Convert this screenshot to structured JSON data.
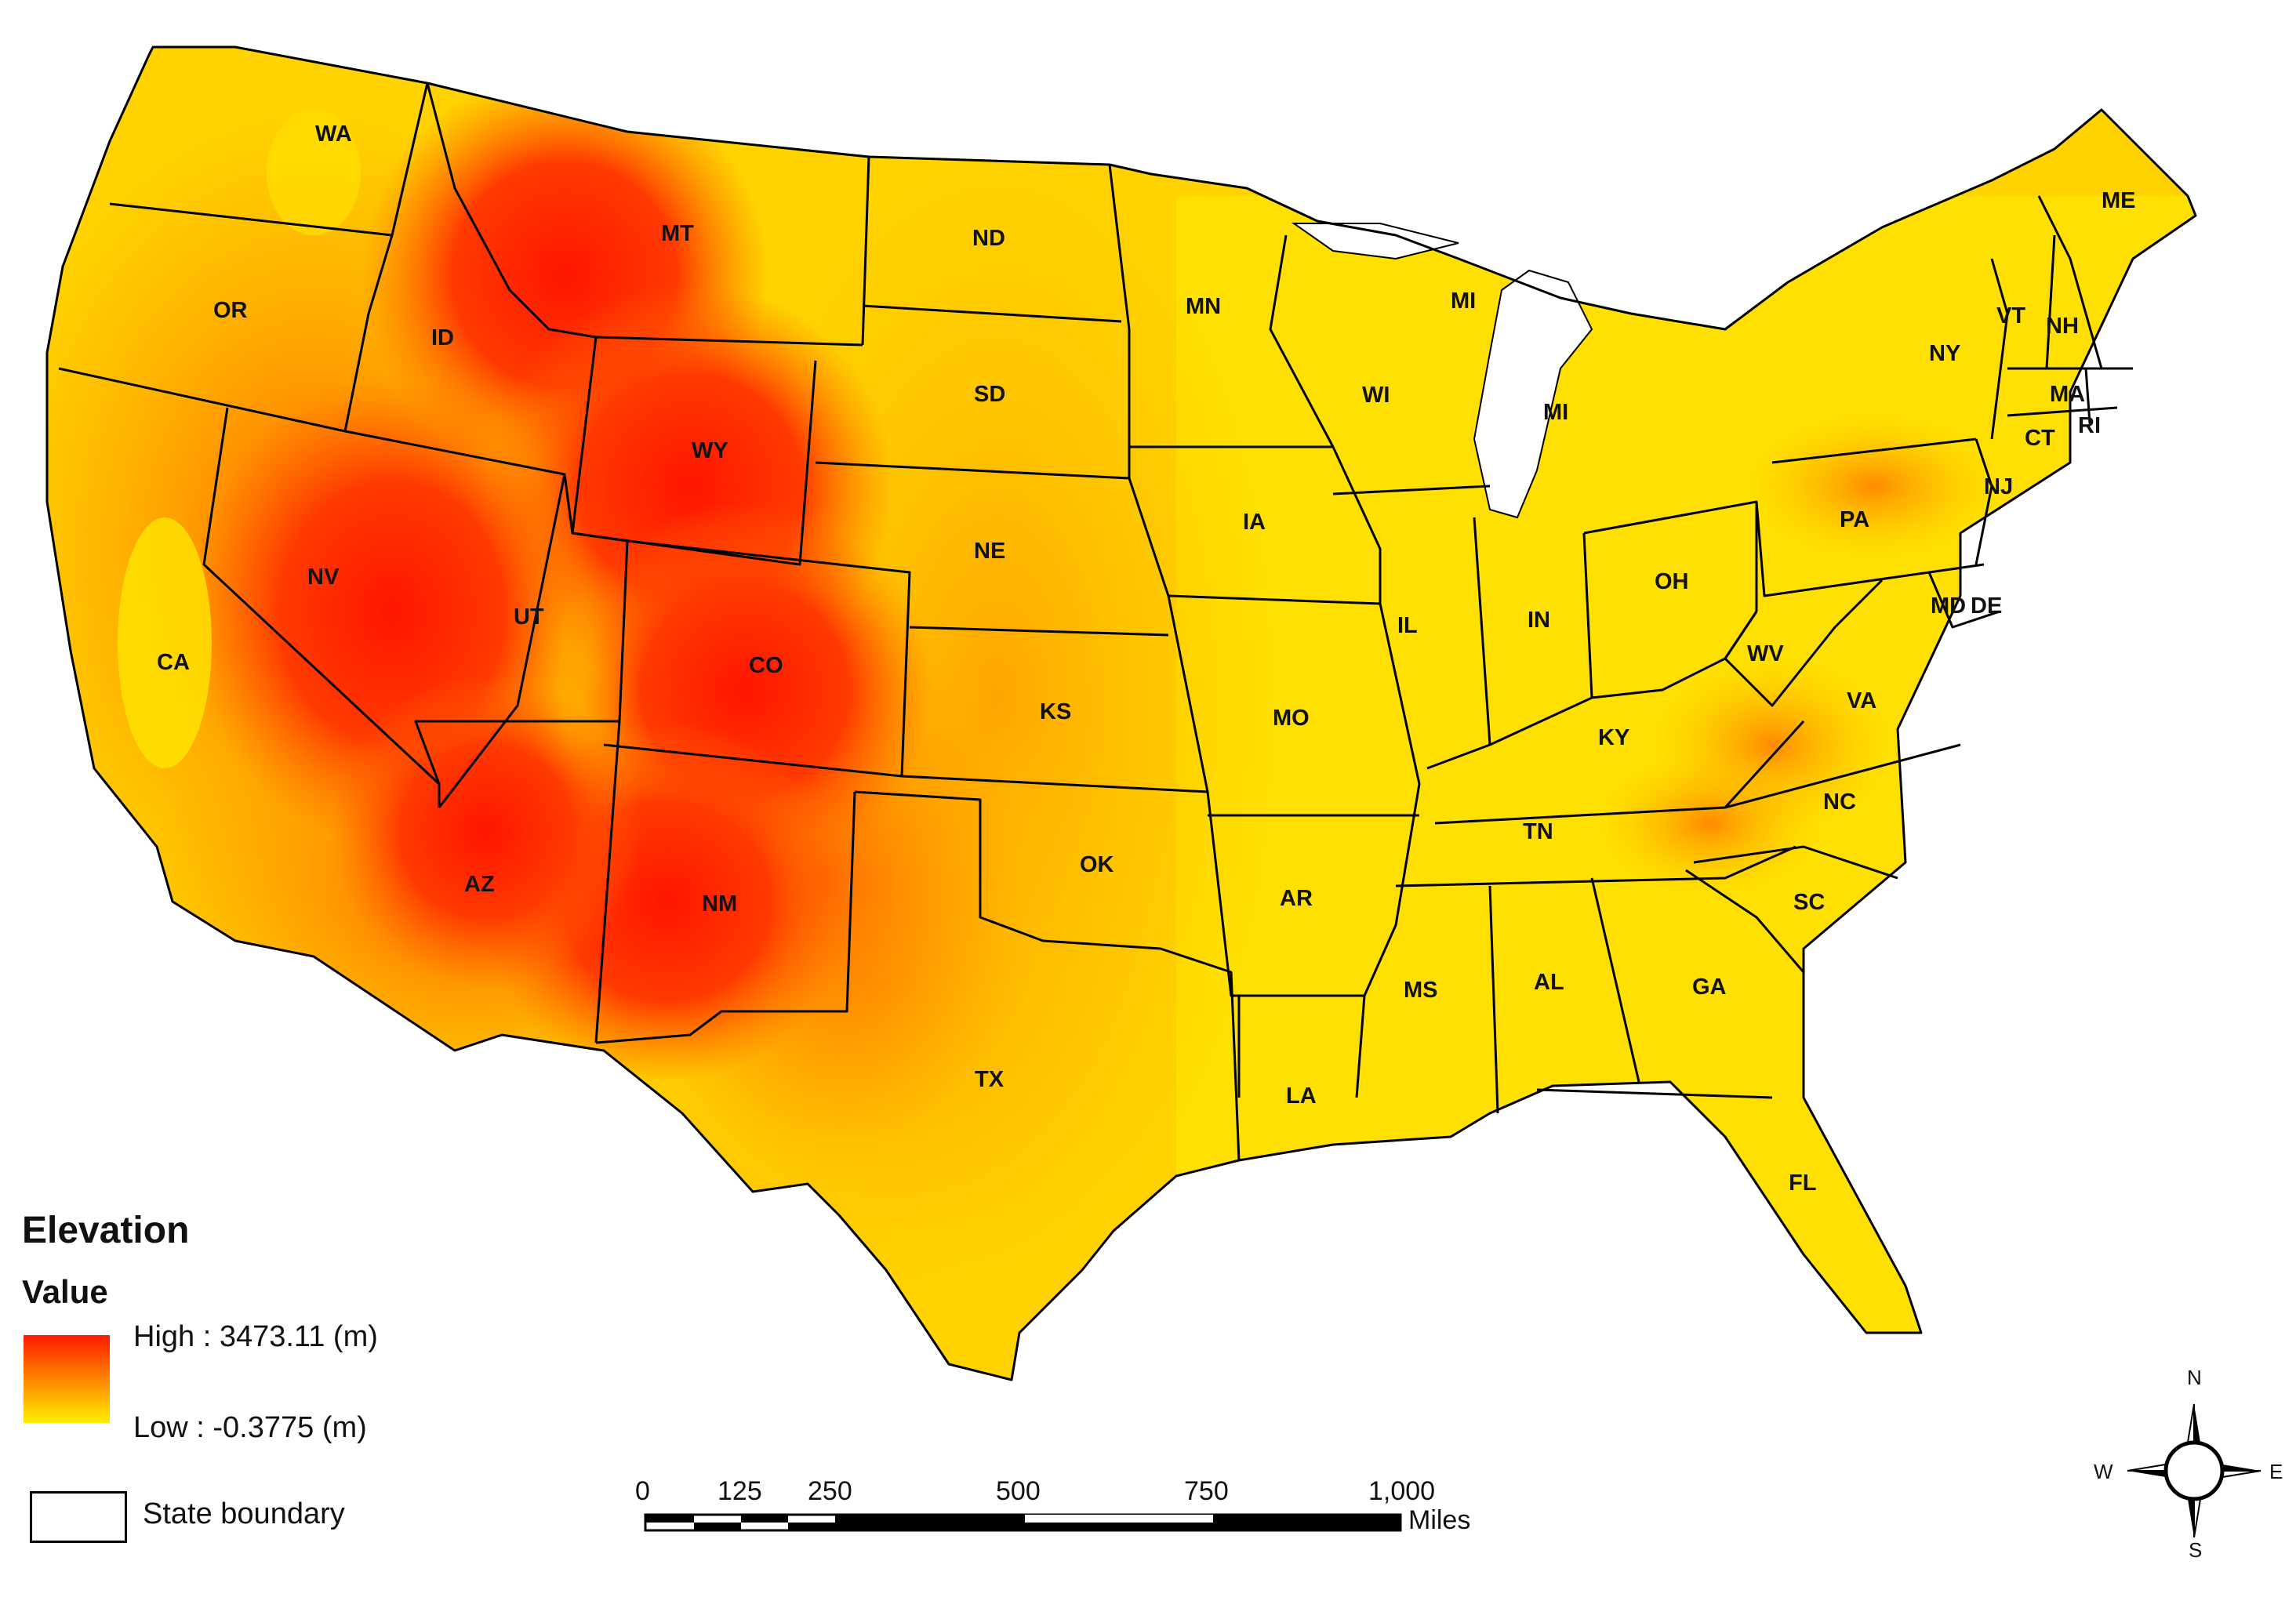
{
  "legend": {
    "title": "Elevation",
    "subtitle": "Value",
    "high_label": "High : 3473.11 (m)",
    "low_label": "Low : -0.3775 (m)",
    "boundary_label": "State boundary",
    "high_color": "#ff1a00",
    "mid_color": "#ff7a00",
    "low_color": "#ffee00"
  },
  "scale_bar": {
    "ticks": [
      "0",
      "125",
      "250",
      "500",
      "750",
      "1,000"
    ],
    "unit": "Miles"
  },
  "north_arrow": {
    "n": "N",
    "s": "S",
    "e": "E",
    "w": "W"
  },
  "states": [
    {
      "code": "WA",
      "elev": "mid"
    },
    {
      "code": "OR",
      "elev": "mid"
    },
    {
      "code": "CA",
      "elev": "mid"
    },
    {
      "code": "ID",
      "elev": "high"
    },
    {
      "code": "NV",
      "elev": "high"
    },
    {
      "code": "MT",
      "elev": "high"
    },
    {
      "code": "WY",
      "elev": "high"
    },
    {
      "code": "UT",
      "elev": "high"
    },
    {
      "code": "AZ",
      "elev": "high"
    },
    {
      "code": "CO",
      "elev": "high"
    },
    {
      "code": "NM",
      "elev": "high"
    },
    {
      "code": "ND",
      "elev": "mid"
    },
    {
      "code": "SD",
      "elev": "mid"
    },
    {
      "code": "NE",
      "elev": "mid"
    },
    {
      "code": "KS",
      "elev": "mid"
    },
    {
      "code": "OK",
      "elev": "mid"
    },
    {
      "code": "TX",
      "elev": "mid"
    },
    {
      "code": "MN",
      "elev": "low"
    },
    {
      "code": "IA",
      "elev": "low"
    },
    {
      "code": "MO",
      "elev": "low"
    },
    {
      "code": "AR",
      "elev": "low"
    },
    {
      "code": "LA",
      "elev": "low"
    },
    {
      "code": "WI",
      "elev": "low"
    },
    {
      "code": "MI",
      "elev": "low"
    },
    {
      "code": "MI",
      "elev": "low"
    },
    {
      "code": "IL",
      "elev": "low"
    },
    {
      "code": "IN",
      "elev": "low"
    },
    {
      "code": "OH",
      "elev": "low"
    },
    {
      "code": "KY",
      "elev": "low"
    },
    {
      "code": "TN",
      "elev": "low"
    },
    {
      "code": "MS",
      "elev": "low"
    },
    {
      "code": "AL",
      "elev": "low"
    },
    {
      "code": "GA",
      "elev": "low"
    },
    {
      "code": "FL",
      "elev": "low"
    },
    {
      "code": "SC",
      "elev": "low"
    },
    {
      "code": "NC",
      "elev": "low"
    },
    {
      "code": "VA",
      "elev": "low"
    },
    {
      "code": "WV",
      "elev": "mid"
    },
    {
      "code": "PA",
      "elev": "low"
    },
    {
      "code": "NY",
      "elev": "low"
    },
    {
      "code": "MD",
      "elev": "low"
    },
    {
      "code": "DE",
      "elev": "low"
    },
    {
      "code": "NJ",
      "elev": "low"
    },
    {
      "code": "CT",
      "elev": "low"
    },
    {
      "code": "RI",
      "elev": "low"
    },
    {
      "code": "MA",
      "elev": "low"
    },
    {
      "code": "VT",
      "elev": "low"
    },
    {
      "code": "NH",
      "elev": "low"
    },
    {
      "code": "ME",
      "elev": "low"
    }
  ]
}
